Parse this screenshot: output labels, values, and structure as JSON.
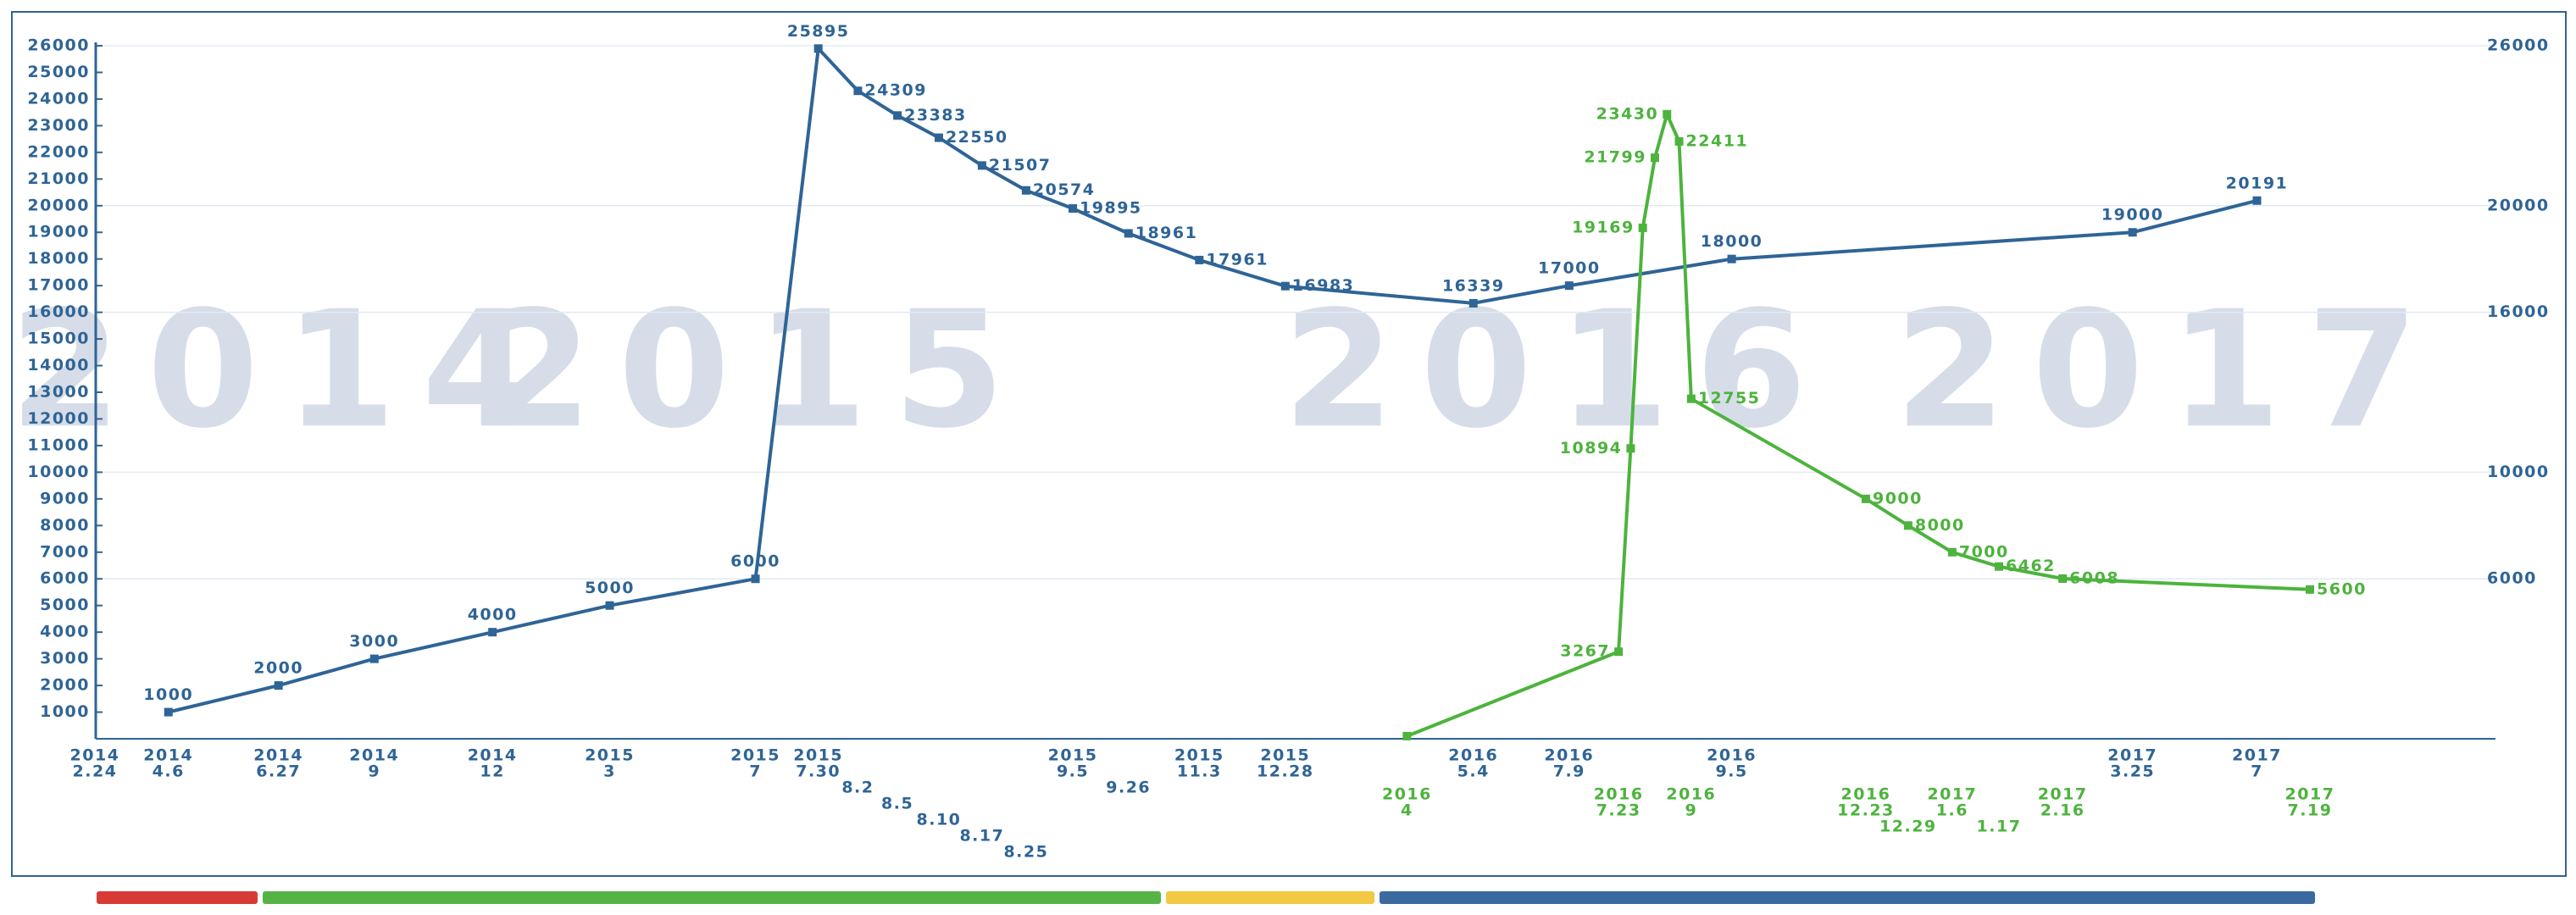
{
  "chart_data": {
    "type": "line",
    "background_labels": [
      "2014",
      "2015",
      "2016",
      "2017"
    ],
    "ylim": [
      0,
      26000
    ],
    "yticks": [
      1000,
      2000,
      3000,
      4000,
      5000,
      6000,
      7000,
      8000,
      9000,
      10000,
      11000,
      12000,
      13000,
      14000,
      15000,
      16000,
      17000,
      18000,
      19000,
      20000,
      21000,
      22000,
      23000,
      24000,
      25000,
      26000
    ],
    "y2lim": [
      0,
      26000
    ],
    "y2ticks": [
      6000,
      10000,
      16000,
      20000,
      26000
    ],
    "grid": true,
    "series": [
      {
        "color": "#2f6496",
        "x": [
          [
            "2014",
            "2.24"
          ],
          [
            "2014",
            "4.6"
          ],
          [
            "2014",
            "6.27"
          ],
          [
            "2014",
            "9"
          ],
          [
            "2014",
            "12"
          ],
          [
            "2015",
            "3"
          ],
          [
            "2015",
            "7"
          ],
          [
            "2015",
            "7.30"
          ],
          [
            null,
            "8.2"
          ],
          [
            null,
            "8.5"
          ],
          [
            null,
            "8.10"
          ],
          [
            null,
            "8.17"
          ],
          [
            null,
            "8.25"
          ],
          [
            "2015",
            "9.5"
          ],
          [
            null,
            "9.26"
          ],
          [
            "2015",
            "11.3"
          ],
          [
            "2015",
            "12.28"
          ],
          [
            "2016",
            "5.4"
          ],
          [
            "2016",
            "7.9"
          ],
          [
            "2016",
            "9.5"
          ],
          [
            "2017",
            "3.25"
          ],
          [
            "2017",
            "7"
          ]
        ],
        "values": [
          null,
          1000,
          2000,
          3000,
          4000,
          5000,
          6000,
          25895,
          24309,
          23383,
          22550,
          21507,
          20574,
          19895,
          18961,
          17961,
          16983,
          16339,
          17000,
          18000,
          19000,
          20191
        ]
      },
      {
        "color": "#4db33d",
        "x": [
          [
            "2016",
            "4"
          ],
          [
            "2016",
            "7.23"
          ],
          null,
          null,
          null,
          null,
          null,
          [
            "2016",
            "9"
          ],
          [
            "2016",
            "12.23"
          ],
          [
            null,
            "12.29"
          ],
          [
            "2017",
            "1.6"
          ],
          [
            null,
            "1.17"
          ],
          [
            "2017",
            "2.16"
          ],
          [
            "2017",
            "7.19"
          ]
        ],
        "values": [
          100,
          3267,
          10894,
          19169,
          21799,
          23430,
          22411,
          12755,
          9000,
          8000,
          7000,
          6462,
          6008,
          5600
        ],
        "value_labels": [
          null,
          "3267",
          "10894",
          "19169",
          "21799",
          "23430",
          "22411",
          "12755",
          "9000",
          "8000",
          "7000",
          "6462",
          "6008",
          "5600"
        ]
      }
    ]
  }
}
